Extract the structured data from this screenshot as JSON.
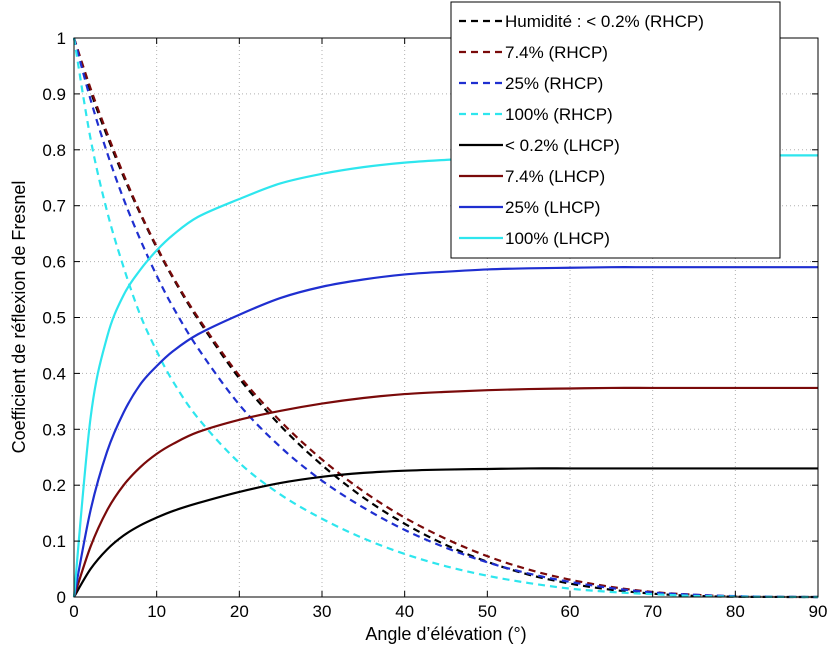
{
  "chart_data": {
    "type": "line",
    "title": "",
    "xlabel": "Angle d’élévation (°)",
    "ylabel": "Coefficient de réflexion de Fresnel",
    "xlim": [
      0,
      90
    ],
    "ylim": [
      0,
      1
    ],
    "xticks": [
      0,
      10,
      20,
      30,
      40,
      50,
      60,
      70,
      80,
      90
    ],
    "yticks": [
      0,
      0.1,
      0.2,
      0.3,
      0.4,
      0.5,
      0.6,
      0.7,
      0.8,
      0.9,
      1
    ],
    "grid": true,
    "legend_position": "top-right",
    "x": [
      0,
      2,
      4,
      6,
      8,
      10,
      12,
      15,
      20,
      25,
      30,
      35,
      40,
      45,
      50,
      55,
      60,
      65,
      70,
      75,
      80,
      85,
      90
    ],
    "series": [
      {
        "name": "Humidité : < 0.2% (RHCP)",
        "color": "#000000",
        "dash": true,
        "values": [
          1.0,
          0.905,
          0.825,
          0.752,
          0.686,
          0.625,
          0.57,
          0.497,
          0.391,
          0.306,
          0.236,
          0.178,
          0.131,
          0.093,
          0.063,
          0.04,
          0.024,
          0.013,
          0.006,
          0.002,
          0.0005,
          0.0001,
          0.0
        ]
      },
      {
        "name": "7.4% (RHCP)",
        "color": "#7a0a0a",
        "dash": true,
        "values": [
          1.0,
          0.91,
          0.83,
          0.756,
          0.688,
          0.627,
          0.572,
          0.5,
          0.396,
          0.314,
          0.246,
          0.189,
          0.142,
          0.104,
          0.073,
          0.049,
          0.031,
          0.018,
          0.009,
          0.004,
          0.001,
          0.0002,
          0.0
        ]
      },
      {
        "name": "25% (RHCP)",
        "color": "#1f2fd0",
        "dash": true,
        "values": [
          1.0,
          0.89,
          0.795,
          0.712,
          0.64,
          0.575,
          0.518,
          0.445,
          0.344,
          0.268,
          0.208,
          0.16,
          0.12,
          0.088,
          0.062,
          0.042,
          0.027,
          0.016,
          0.008,
          0.004,
          0.0015,
          0.0004,
          0.0
        ]
      },
      {
        "name": "100% (RHCP)",
        "color": "#2ee6ee",
        "dash": true,
        "values": [
          1.0,
          0.82,
          0.69,
          0.59,
          0.505,
          0.44,
          0.385,
          0.32,
          0.24,
          0.183,
          0.14,
          0.105,
          0.077,
          0.055,
          0.038,
          0.025,
          0.015,
          0.009,
          0.005,
          0.002,
          0.0008,
          0.0002,
          0.0
        ]
      },
      {
        "name": "< 0.2% (LHCP)",
        "color": "#000000",
        "dash": false,
        "values": [
          0.0,
          0.05,
          0.085,
          0.11,
          0.128,
          0.142,
          0.154,
          0.168,
          0.188,
          0.204,
          0.215,
          0.222,
          0.226,
          0.228,
          0.229,
          0.23,
          0.23,
          0.23,
          0.23,
          0.23,
          0.23,
          0.23,
          0.23
        ]
      },
      {
        "name": "7.4% (LHCP)",
        "color": "#7a0a0a",
        "dash": false,
        "values": [
          0.0,
          0.09,
          0.155,
          0.2,
          0.232,
          0.256,
          0.274,
          0.295,
          0.317,
          0.333,
          0.346,
          0.356,
          0.363,
          0.367,
          0.37,
          0.372,
          0.373,
          0.374,
          0.374,
          0.374,
          0.374,
          0.374,
          0.374
        ]
      },
      {
        "name": "25% (LHCP)",
        "color": "#1f2fd0",
        "dash": false,
        "values": [
          0.0,
          0.155,
          0.26,
          0.33,
          0.38,
          0.413,
          0.44,
          0.47,
          0.505,
          0.535,
          0.555,
          0.568,
          0.577,
          0.582,
          0.586,
          0.588,
          0.589,
          0.59,
          0.59,
          0.59,
          0.59,
          0.59,
          0.59
        ]
      },
      {
        "name": "100% (LHCP)",
        "color": "#2ee6ee",
        "dash": false,
        "values": [
          0.0,
          0.32,
          0.465,
          0.54,
          0.585,
          0.62,
          0.648,
          0.68,
          0.712,
          0.74,
          0.757,
          0.769,
          0.777,
          0.782,
          0.786,
          0.788,
          0.789,
          0.79,
          0.79,
          0.79,
          0.79,
          0.79,
          0.79
        ]
      }
    ]
  }
}
